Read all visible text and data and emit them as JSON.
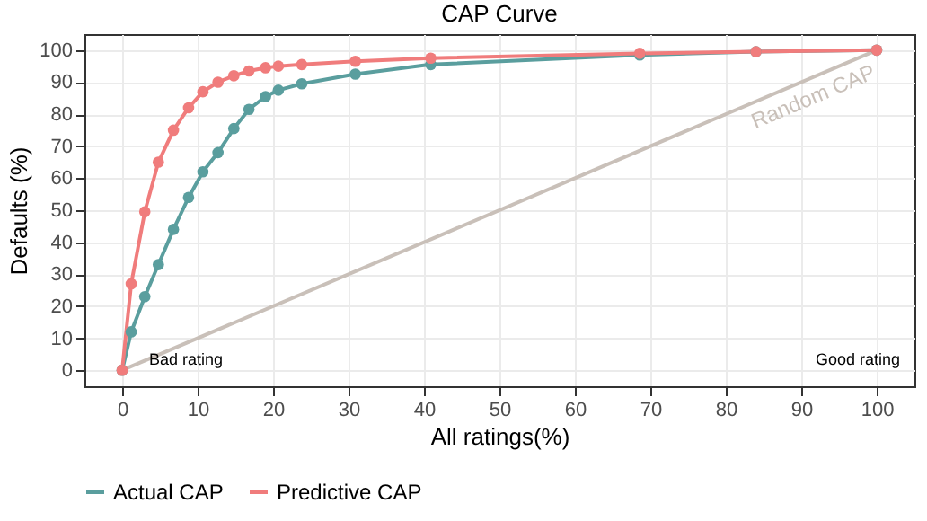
{
  "chart_data": {
    "type": "line",
    "title": "CAP Curve",
    "xlabel": "All ratings(%)",
    "ylabel": "Defaults (%)",
    "x": [
      0,
      1.2,
      3,
      4.8,
      6.8,
      8.8,
      10.7,
      12.7,
      14.8,
      16.8,
      19,
      20.7,
      23.8,
      30.9,
      40.9,
      68.6,
      84,
      100
    ],
    "series": [
      {
        "name": "Actual CAP",
        "color": "#5a9e9e",
        "marker": "circle",
        "values": [
          0,
          12,
          23,
          33,
          44,
          54,
          62,
          68,
          75.5,
          81.5,
          85.5,
          87.5,
          89.5,
          92.5,
          95.5,
          98.5,
          99.5,
          100
        ]
      },
      {
        "name": "Predictive CAP",
        "color": "#f07c7c",
        "marker": "circle",
        "values": [
          0,
          27,
          49.5,
          65,
          75,
          82,
          87,
          90,
          92,
          93.5,
          94.5,
          95,
          95.5,
          96.5,
          97.5,
          99,
          99.5,
          100
        ]
      },
      {
        "name": "Random CAP",
        "color": "#c9c0b9",
        "marker": "none",
        "x": [
          0,
          100
        ],
        "values": [
          0,
          100
        ]
      }
    ],
    "annotations": [
      "Bad rating",
      "Good rating"
    ],
    "xlim": [
      -5,
      105
    ],
    "ylim": [
      -5,
      105
    ],
    "xticks": [
      0,
      10,
      20,
      30,
      40,
      50,
      60,
      70,
      80,
      90,
      100
    ],
    "yticks": [
      0,
      10,
      20,
      30,
      40,
      50,
      60,
      70,
      80,
      90,
      100
    ],
    "grid": true,
    "legend": "bottom"
  }
}
